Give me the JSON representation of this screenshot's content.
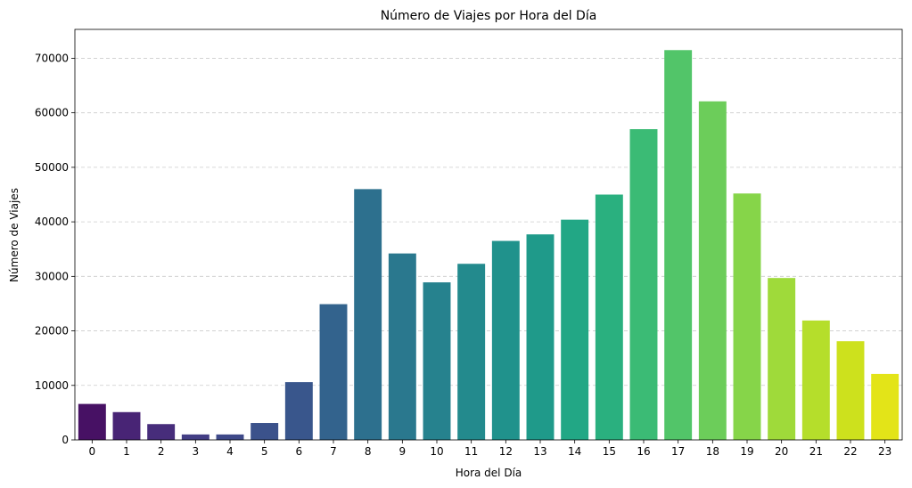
{
  "chart_data": {
    "type": "bar",
    "title": "Número de Viajes por Hora del Día",
    "xlabel": "Hora del Día",
    "ylabel": "Número de Viajes",
    "categories": [
      "0",
      "1",
      "2",
      "3",
      "4",
      "5",
      "6",
      "7",
      "8",
      "9",
      "10",
      "11",
      "12",
      "13",
      "14",
      "15",
      "16",
      "17",
      "18",
      "19",
      "20",
      "21",
      "22",
      "23"
    ],
    "values": [
      6600,
      5100,
      2900,
      1000,
      1000,
      3100,
      10600,
      24900,
      46000,
      34200,
      28900,
      32300,
      36500,
      37700,
      40400,
      45000,
      57000,
      71500,
      62100,
      45200,
      29700,
      21900,
      18100,
      12100
    ],
    "ylim": [
      0,
      75300
    ],
    "yticks": [
      0,
      10000,
      20000,
      30000,
      40000,
      50000,
      60000,
      70000
    ],
    "ytick_labels": [
      "0",
      "10000",
      "20000",
      "30000",
      "40000",
      "50000",
      "60000",
      "70000"
    ],
    "grid": "y",
    "colors": [
      "#471164",
      "#482475",
      "#472d7b",
      "#433e85",
      "#3e4989",
      "#3b528b",
      "#39568c",
      "#33638d",
      "#2d708e",
      "#2a788e",
      "#26828e",
      "#238a8d",
      "#20928c",
      "#1f9a8a",
      "#22a785",
      "#2ab07f",
      "#3bbb75",
      "#52c569",
      "#6ccd5a",
      "#86d549",
      "#9fda3a",
      "#b5de2b",
      "#cde11d",
      "#e3e418"
    ]
  }
}
